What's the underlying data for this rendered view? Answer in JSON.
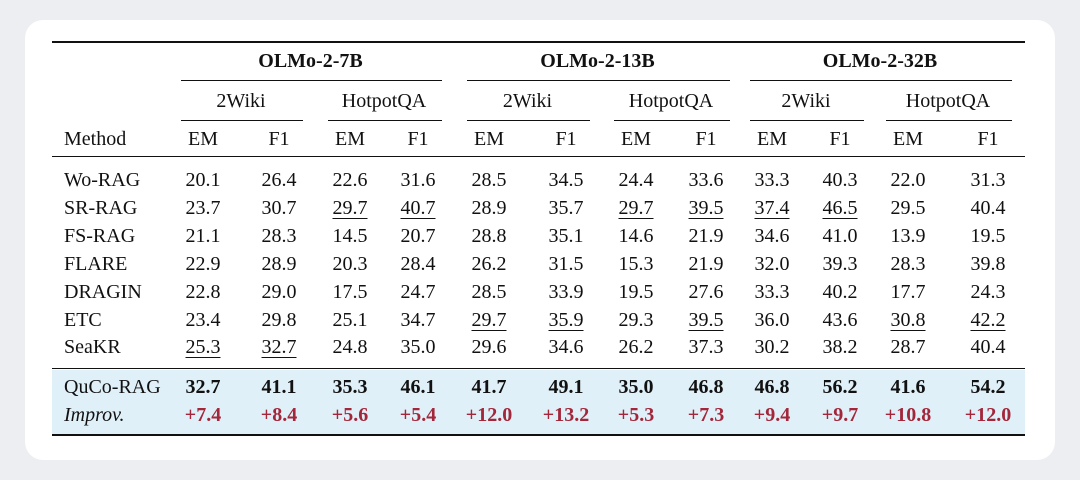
{
  "table": {
    "method_header": "Method",
    "groups": [
      {
        "title": "OLMo-2-7B",
        "datasets": [
          "2Wiki",
          "HotpotQA"
        ]
      },
      {
        "title": "OLMo-2-13B",
        "datasets": [
          "2Wiki",
          "HotpotQA"
        ]
      },
      {
        "title": "OLMo-2-32B",
        "datasets": [
          "2Wiki",
          "HotpotQA"
        ]
      }
    ],
    "metric_headers": [
      "EM",
      "F1",
      "EM",
      "F1",
      "EM",
      "F1",
      "EM",
      "F1",
      "EM",
      "F1",
      "EM",
      "F1"
    ],
    "rows": [
      {
        "method": "Wo-RAG",
        "values": [
          "20.1",
          "26.4",
          "22.6",
          "31.6",
          "28.5",
          "34.5",
          "24.4",
          "33.6",
          "33.3",
          "40.3",
          "22.0",
          "31.3"
        ],
        "underlined": []
      },
      {
        "method": "SR-RAG",
        "values": [
          "23.7",
          "30.7",
          "29.7",
          "40.7",
          "28.9",
          "35.7",
          "29.7",
          "39.5",
          "37.4",
          "46.5",
          "29.5",
          "40.4"
        ],
        "underlined": [
          2,
          3,
          6,
          7,
          8,
          9
        ]
      },
      {
        "method": "FS-RAG",
        "values": [
          "21.1",
          "28.3",
          "14.5",
          "20.7",
          "28.8",
          "35.1",
          "14.6",
          "21.9",
          "34.6",
          "41.0",
          "13.9",
          "19.5"
        ],
        "underlined": []
      },
      {
        "method": "FLARE",
        "values": [
          "22.9",
          "28.9",
          "20.3",
          "28.4",
          "26.2",
          "31.5",
          "15.3",
          "21.9",
          "32.0",
          "39.3",
          "28.3",
          "39.8"
        ],
        "underlined": []
      },
      {
        "method": "DRAGIN",
        "values": [
          "22.8",
          "29.0",
          "17.5",
          "24.7",
          "28.5",
          "33.9",
          "19.5",
          "27.6",
          "33.3",
          "40.2",
          "17.7",
          "24.3"
        ],
        "underlined": []
      },
      {
        "method": "ETC",
        "values": [
          "23.4",
          "29.8",
          "25.1",
          "34.7",
          "29.7",
          "35.9",
          "29.3",
          "39.5",
          "36.0",
          "43.6",
          "30.8",
          "42.2"
        ],
        "underlined": [
          4,
          5,
          7,
          10,
          11
        ]
      },
      {
        "method": "SeaKR",
        "values": [
          "25.3",
          "32.7",
          "24.8",
          "35.0",
          "29.6",
          "34.6",
          "26.2",
          "37.3",
          "30.2",
          "38.2",
          "28.7",
          "40.4"
        ],
        "underlined": [
          0,
          1
        ]
      }
    ],
    "ours": {
      "method": "QuCo-RAG",
      "values": [
        "32.7",
        "41.1",
        "35.3",
        "46.1",
        "41.7",
        "49.1",
        "35.0",
        "46.8",
        "46.8",
        "56.2",
        "41.6",
        "54.2"
      ]
    },
    "improvement": {
      "method": "Improv.",
      "values": [
        "+7.4",
        "+8.4",
        "+5.6",
        "+5.4",
        "+12.0",
        "+13.2",
        "+5.3",
        "+7.3",
        "+9.4",
        "+9.7",
        "+10.8",
        "+12.0"
      ]
    }
  }
}
